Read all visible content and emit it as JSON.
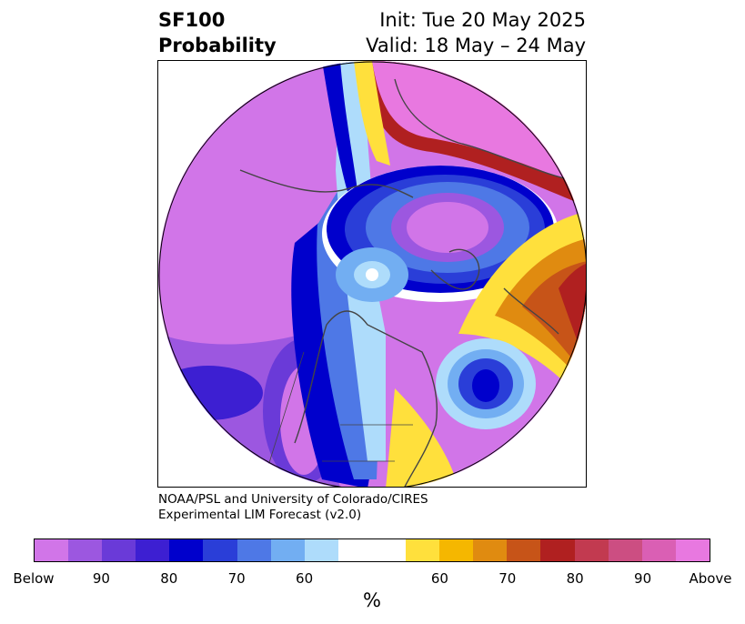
{
  "header": {
    "variable": "SF100",
    "product": "Probability",
    "init": "Init: Tue 20 May 2025",
    "valid": "Valid: 18 May – 24 May"
  },
  "credit": {
    "line1": "NOAA/PSL and University of Colorado/CIRES",
    "line2": "Experimental LIM Forecast (v2.0)"
  },
  "colorbar": {
    "colors": [
      "#d175e8",
      "#9c57e0",
      "#6a3ad8",
      "#3d1fd2",
      "#0000cc",
      "#2a3ed8",
      "#4e78e6",
      "#72aef2",
      "#aedcfb",
      "#ffffff",
      "#ffffff",
      "#ffe03c",
      "#f5b700",
      "#e08b10",
      "#c75418",
      "#b02020",
      "#c23a50",
      "#cc4e82",
      "#da5fb4",
      "#e878e0"
    ],
    "tick_labels": [
      "Below",
      "90",
      "80",
      "70",
      "60",
      "60",
      "70",
      "80",
      "90",
      "Above"
    ],
    "units": "%"
  },
  "map": {
    "projection": "north-polar-stereographic",
    "below_color": "#d175e8",
    "above_color": "#e878e0",
    "border_color": "#444444"
  }
}
